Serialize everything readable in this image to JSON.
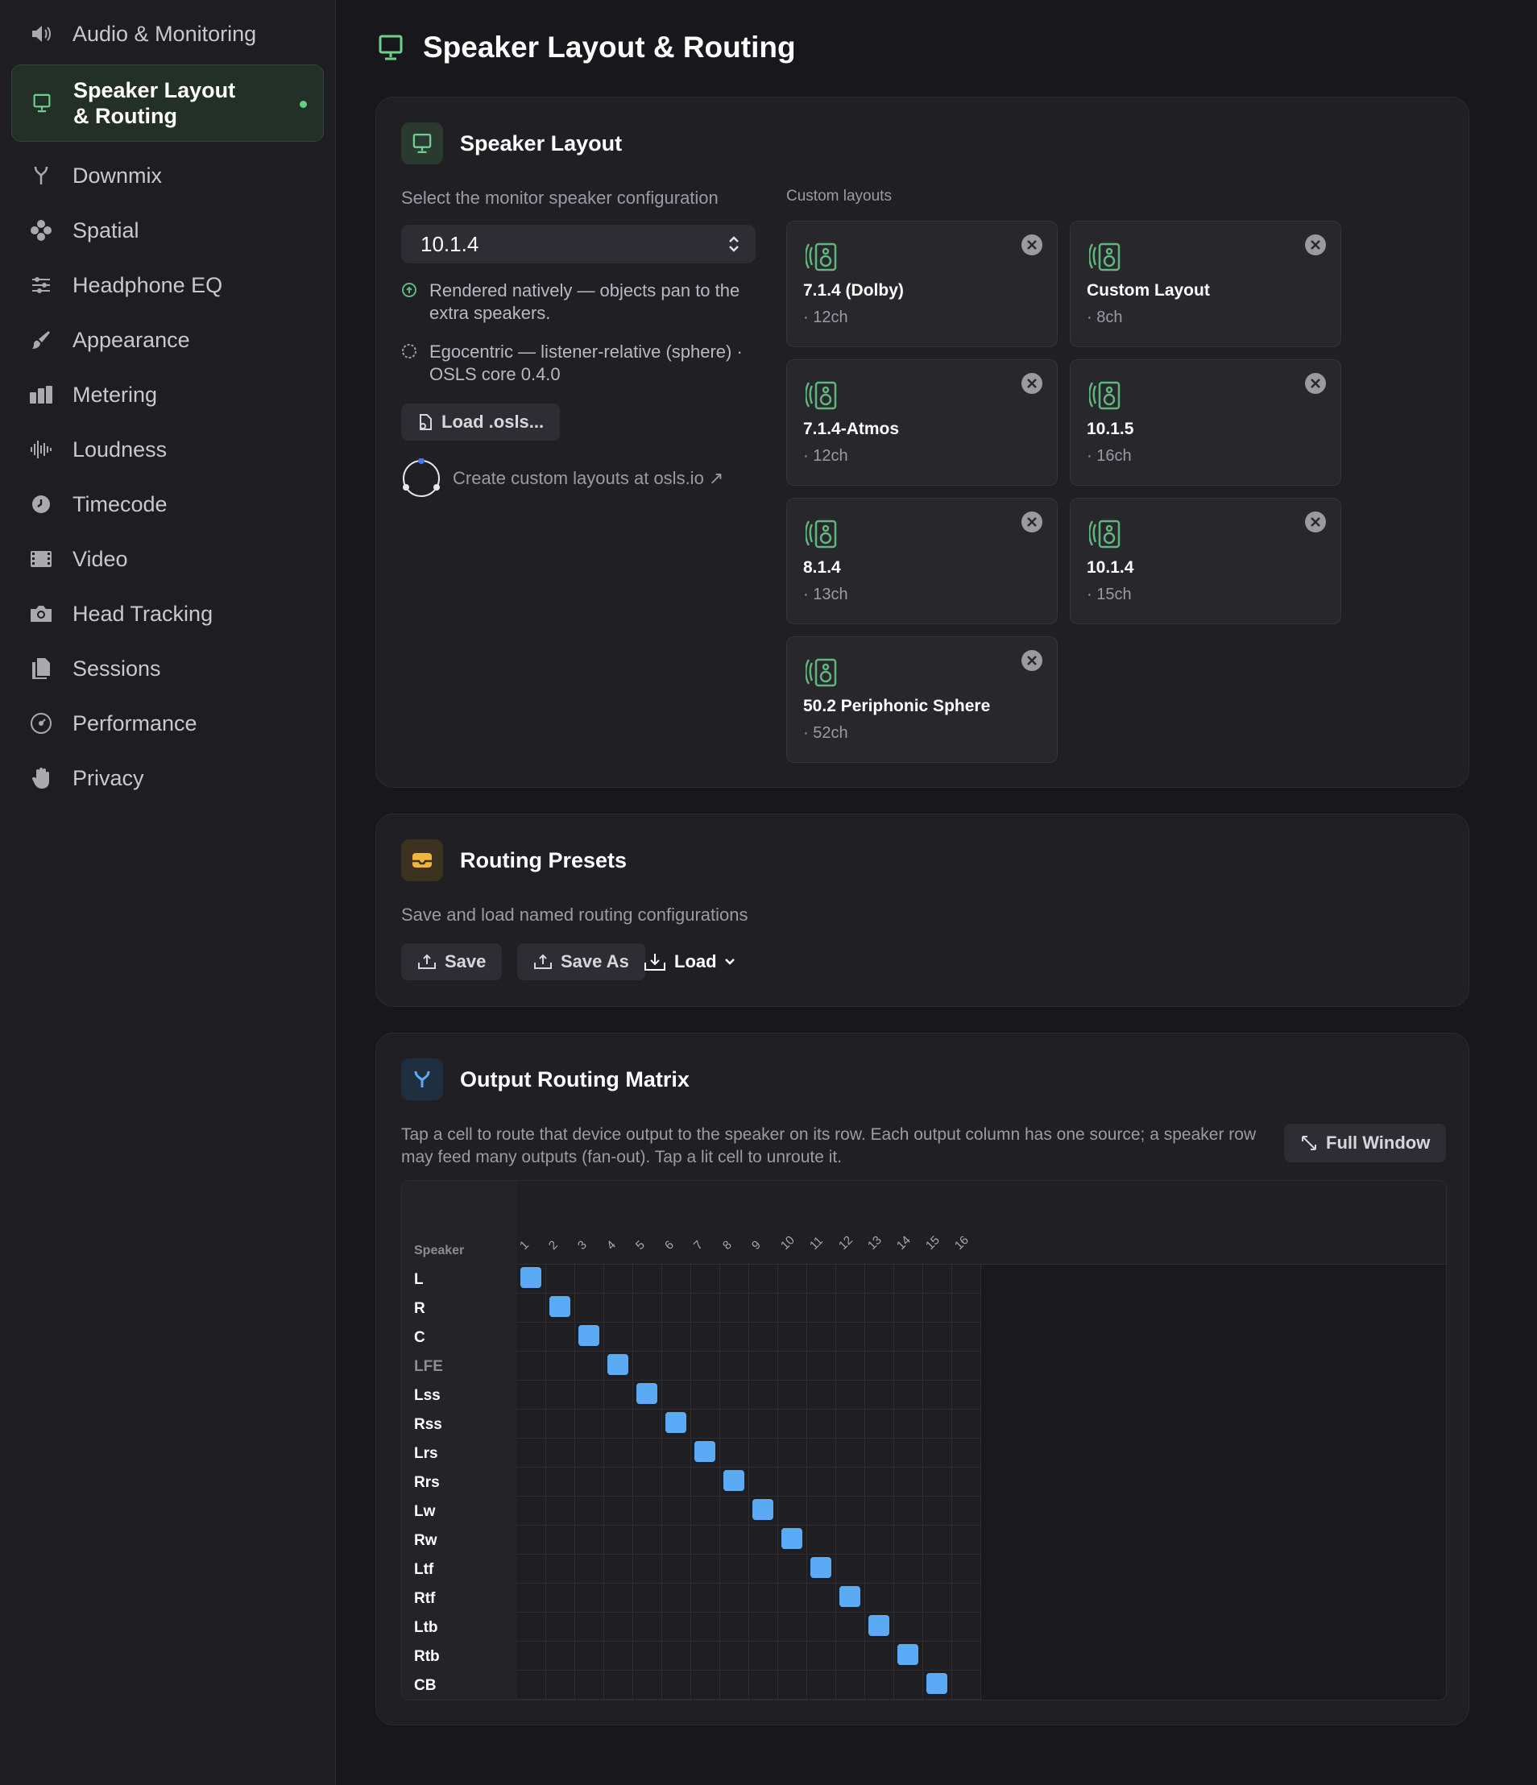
{
  "sidebar": {
    "items": [
      {
        "label": "Audio & Monitoring",
        "icon": "speaker-icon",
        "active": false
      },
      {
        "label": "Speaker Layout\n& Routing",
        "icon": "monitor-icon",
        "active": true
      },
      {
        "label": "Downmix",
        "icon": "merge-icon",
        "active": false
      },
      {
        "label": "Spatial",
        "icon": "spatial-icon",
        "active": false
      },
      {
        "label": "Headphone EQ",
        "icon": "sliders-icon",
        "active": false
      },
      {
        "label": "Appearance",
        "icon": "brush-icon",
        "active": false
      },
      {
        "label": "Metering",
        "icon": "meter-icon",
        "active": false
      },
      {
        "label": "Loudness",
        "icon": "waveform-icon",
        "active": false
      },
      {
        "label": "Timecode",
        "icon": "clock-icon",
        "active": false
      },
      {
        "label": "Video",
        "icon": "film-icon",
        "active": false
      },
      {
        "label": "Head Tracking",
        "icon": "camera-icon",
        "active": false
      },
      {
        "label": "Sessions",
        "icon": "documents-icon",
        "active": false
      },
      {
        "label": "Performance",
        "icon": "gauge-icon",
        "active": false
      },
      {
        "label": "Privacy",
        "icon": "hand-icon",
        "active": false
      }
    ]
  },
  "page": {
    "title": "Speaker Layout & Routing"
  },
  "speaker_layout": {
    "title": "Speaker Layout",
    "select_label": "Select the monitor speaker configuration",
    "selected": "10.1.4",
    "option1": "Rendered natively — objects pan to the extra speakers.",
    "option2": "Egocentric — listener-relative (sphere) · OSLS core 0.4.0",
    "load_button": "Load .osls...",
    "create_link": "Create custom layouts at osls.io ↗",
    "custom_label": "Custom layouts",
    "tiles": [
      {
        "name": "7.1.4 (Dolby)",
        "channels": "· 12ch"
      },
      {
        "name": "Custom Layout",
        "channels": "· 8ch"
      },
      {
        "name": "7.1.4-Atmos",
        "channels": "· 12ch"
      },
      {
        "name": "10.1.5",
        "channels": "· 16ch"
      },
      {
        "name": "8.1.4",
        "channels": "· 13ch"
      },
      {
        "name": "10.1.4",
        "channels": "· 15ch"
      },
      {
        "name": "50.2 Periphonic Sphere",
        "channels": "· 52ch"
      }
    ]
  },
  "routing_presets": {
    "title": "Routing Presets",
    "description": "Save and load named routing configurations",
    "save": "Save",
    "save_as": "Save As",
    "load": "Load"
  },
  "output_matrix": {
    "title": "Output Routing Matrix",
    "description": "Tap a cell to route that device output to the speaker on its row. Each output column has one source; a speaker row may feed many outputs (fan-out). Tap a lit cell to unroute it.",
    "full_window": "Full Window",
    "speaker_header": "Speaker",
    "columns": [
      "1",
      "2",
      "3",
      "4",
      "5",
      "6",
      "7",
      "8",
      "9",
      "10",
      "11",
      "12",
      "13",
      "14",
      "15",
      "16"
    ],
    "rows": [
      "L",
      "R",
      "C",
      "LFE",
      "Lss",
      "Rss",
      "Lrs",
      "Rrs",
      "Lw",
      "Rw",
      "Ltf",
      "Rtf",
      "Ltb",
      "Rtb",
      "CB"
    ],
    "dim_rows": [
      "LFE"
    ],
    "routes": [
      1,
      2,
      3,
      4,
      5,
      6,
      7,
      8,
      9,
      10,
      11,
      12,
      13,
      14,
      15
    ]
  },
  "colors": {
    "accent_green": "#5fb77e",
    "route_on": "#5aaaf5",
    "routing_icon_bg": "#f0b63a"
  }
}
